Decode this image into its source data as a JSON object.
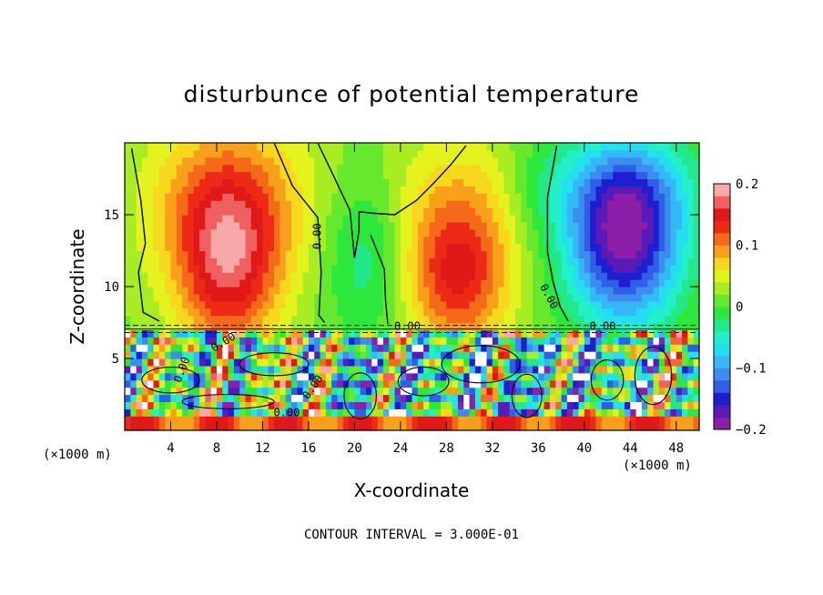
{
  "chart_data": {
    "type": "heatmap",
    "title": "disturbunce of potential temperature",
    "xlabel": "X-coordinate",
    "ylabel": "Z-coordinate",
    "x_unit_label": "(×1000 m)",
    "xlim": [
      0,
      50
    ],
    "ylim": [
      0,
      20
    ],
    "x_ticks": [
      4,
      8,
      12,
      16,
      20,
      24,
      28,
      32,
      36,
      40,
      44,
      48
    ],
    "y_ticks": [
      5,
      10,
      15
    ],
    "footer": "CONTOUR INTERVAL = 3.000E-01",
    "colorbar": {
      "range": [
        -0.2,
        0.2
      ],
      "tick_values": [
        0.2,
        0.1,
        0,
        -0.1,
        -0.2
      ],
      "tick_labels": [
        "0.2",
        "0.1",
        "0",
        "−0.1",
        "−0.2"
      ],
      "colors": [
        "#8b1fa8",
        "#5a1ab8",
        "#1f1fd0",
        "#2f5fe6",
        "#3c8cf0",
        "#35b8f5",
        "#22e0f0",
        "#22f0c8",
        "#22e88a",
        "#2ce83c",
        "#66e82c",
        "#a8ec22",
        "#e4f21e",
        "#f8d81c",
        "#f8a01a",
        "#f46a18",
        "#ec2a16",
        "#e01818",
        "#f06060",
        "#f8a8a8"
      ]
    },
    "contour_labels": [
      {
        "text": "0.00",
        "x": 16.8,
        "z": 13.5,
        "rotate": -90
      },
      {
        "text": "0.00",
        "x": 36.9,
        "z": 9.3,
        "rotate": 62
      },
      {
        "text": "0.00",
        "x": 24.6,
        "z": 7.2,
        "rotate": 0
      },
      {
        "text": "0.00",
        "x": 41.6,
        "z": 7.2,
        "rotate": 0
      },
      {
        "text": "0.00",
        "x": 8.6,
        "z": 6.1,
        "rotate": -32
      },
      {
        "text": "0.00",
        "x": 5.0,
        "z": 4.2,
        "rotate": -70
      },
      {
        "text": "0.00",
        "x": 16.4,
        "z": 3.0,
        "rotate": -55
      },
      {
        "text": "0.00",
        "x": 14.1,
        "z": 1.2,
        "rotate": 0
      }
    ],
    "anomaly_features": [
      {
        "x": 9,
        "z": 11,
        "sx": 4.5,
        "sz": 6.0,
        "value": 0.12
      },
      {
        "x": 9,
        "z": 16,
        "sx": 7.0,
        "sz": 6.0,
        "value": 0.09
      },
      {
        "x": 29,
        "z": 10.5,
        "sx": 4.5,
        "sz": 5.0,
        "value": 0.12
      },
      {
        "x": 29,
        "z": 16,
        "sx": 6.0,
        "sz": 5.0,
        "value": 0.05
      },
      {
        "x": 43.5,
        "z": 12.5,
        "sx": 5.0,
        "sz": 5.5,
        "value": -0.18
      },
      {
        "x": 43.5,
        "z": 17,
        "sx": 6.0,
        "sz": 4.0,
        "value": -0.09
      },
      {
        "x": 21,
        "z": 12,
        "sx": 3.5,
        "sz": 5.5,
        "value": -0.05
      },
      {
        "x": 36,
        "z": 17,
        "sx": 3.0,
        "sz": 4.0,
        "value": -0.02
      }
    ],
    "lower_layer_top_z": 7.2
  }
}
